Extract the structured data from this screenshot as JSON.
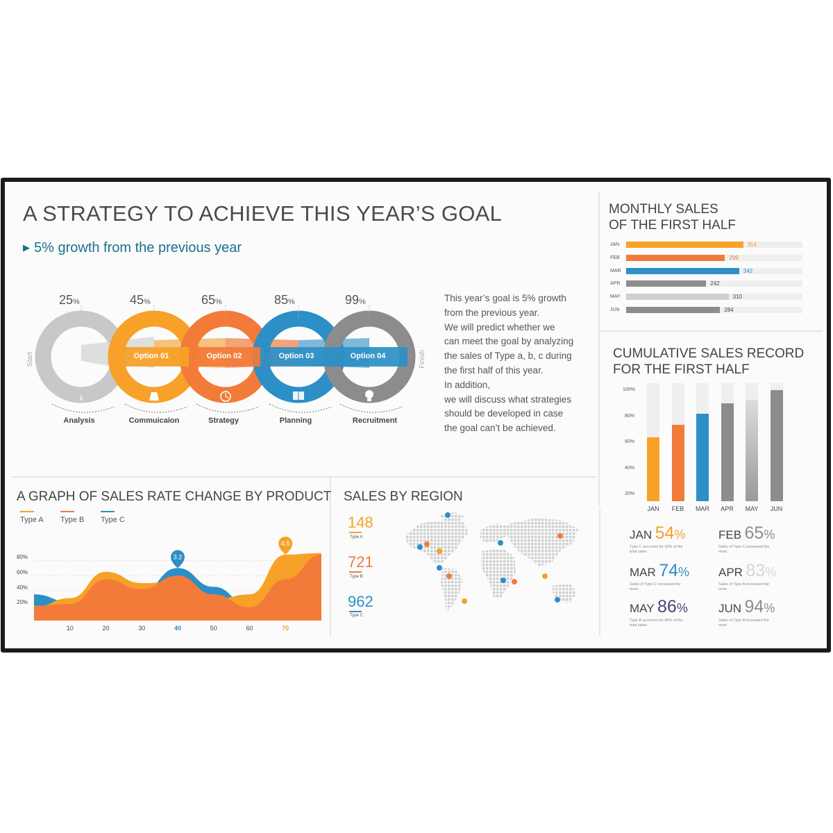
{
  "header": {
    "title": "A STRATEGY TO ACHIEVE THIS YEAR’S GOAL",
    "subtitle": "5% growth from the previous year"
  },
  "strategy": {
    "start_label": "Start",
    "finish_label": "Finish",
    "steps": [
      {
        "percent": "25",
        "unit": "%",
        "label": "Analysis",
        "option": "",
        "color": "#c8c8c8",
        "icon": "money-bag-icon"
      },
      {
        "percent": "45",
        "unit": "%",
        "label": "Commuicaion",
        "option": "Option 01",
        "color": "#f7a128",
        "icon": "flask-icon"
      },
      {
        "percent": "65",
        "unit": "%",
        "label": "Strategy",
        "option": "Option 02",
        "color": "#f27b3a",
        "icon": "clock-icon"
      },
      {
        "percent": "85",
        "unit": "%",
        "label": "Planning",
        "option": "Option 03",
        "color": "#2c8fc6",
        "icon": "book-icon"
      },
      {
        "percent": "99",
        "unit": "%",
        "label": "Recruitment",
        "option": "Option 04",
        "color": "#8c8c8c",
        "icon": "lightbulb-icon"
      }
    ],
    "description_lines": [
      "This year’s goal is 5% growth",
      "from the previous year.",
      "We will predict whether we",
      "can meet the goal by analyzing",
      "the sales of Type a, b, c during",
      "the first half of this year.",
      "In addition,",
      "we will discuss what strategies",
      "should be developed in case",
      "the goal can’t be achieved."
    ]
  },
  "monthly_sales": {
    "title_line1": "MONTHLY SALES",
    "title_line2": "OF THE FIRST HALF"
  },
  "cumulative": {
    "title_line1": "CUMULATIVE SALES RECORD",
    "title_line2": "FOR THE FIRST HALF",
    "ticks": [
      "100%",
      "80%",
      "60%",
      "40%",
      "20%"
    ],
    "percent_blocks": [
      {
        "month": "JAN",
        "value": "54",
        "unit": "%",
        "color": "#f7a128",
        "note": "Type C accounts for 50% of the total sales"
      },
      {
        "month": "FEB",
        "value": "65",
        "unit": "%",
        "color": "#8c8c8c",
        "note": "Sales of Type C increased the most"
      },
      {
        "month": "MAR",
        "value": "74",
        "unit": "%",
        "color": "#2c8fc6",
        "note": "Sales of Type C increased the most"
      },
      {
        "month": "APR",
        "value": "83",
        "unit": "%",
        "color": "#d5d5d5",
        "note": "Sales of Type B increased the most"
      },
      {
        "month": "MAY",
        "value": "86",
        "unit": "%",
        "color": "#4a4580",
        "note": "Type B accounts for 40% of the total sales"
      },
      {
        "month": "JUN",
        "value": "94",
        "unit": "%",
        "color": "#8c8c8c",
        "note": "Sales of Type B increased the most"
      }
    ]
  },
  "rate_graph": {
    "title": "A GRAPH OF SALES RATE CHANGE BY PRODUCT",
    "legend": [
      {
        "name": "Type A",
        "color": "#f7a128"
      },
      {
        "name": "Type B",
        "color": "#f27b3a"
      },
      {
        "name": "Type C",
        "color": "#2c8fc6"
      }
    ],
    "y_ticks": [
      "80%",
      "60%",
      "40%",
      "20%"
    ],
    "markers": [
      {
        "value": "3.2",
        "color": "#2c8fc6"
      },
      {
        "value": "4.5",
        "color": "#f7a128"
      }
    ]
  },
  "region": {
    "title": "SALES BY REGION",
    "items": [
      {
        "value": "148",
        "type": "Type A",
        "color": "#f7a128"
      },
      {
        "value": "721",
        "type": "Type B",
        "color": "#f27b3a"
      },
      {
        "value": "962",
        "type": "Type C",
        "color": "#2c8fc6"
      }
    ]
  },
  "chart_data": [
    {
      "type": "bar",
      "orientation": "horizontal",
      "title": "MONTHLY SALES OF THE FIRST HALF",
      "categories": [
        "JAN",
        "FEB",
        "MAR",
        "APR",
        "MAY",
        "JUN"
      ],
      "values": [
        354,
        299,
        342,
        242,
        310,
        284
      ],
      "colors": [
        "#f7a128",
        "#f27b3a",
        "#2c8fc6",
        "#8c8c8c",
        "#cfcfcf",
        "#8c8c8c"
      ],
      "xlim": [
        0,
        400
      ]
    },
    {
      "type": "bar",
      "title": "CUMULATIVE SALES RECORD FOR THE FIRST HALF",
      "categories": [
        "JAN",
        "FEB",
        "MAR",
        "APR",
        "MAY",
        "JUN"
      ],
      "values": [
        54,
        65,
        74,
        83,
        86,
        94
      ],
      "colors": [
        "#f7a128",
        "#f27b3a",
        "#2c8fc6",
        "#8c8c8c",
        "#bdbdbd",
        "#8c8c8c"
      ],
      "ylim": [
        0,
        100
      ]
    },
    {
      "type": "area",
      "title": "A GRAPH OF SALES RATE CHANGE BY PRODUCT",
      "x": [
        0,
        10,
        20,
        30,
        40,
        50,
        60,
        70,
        80
      ],
      "x_tick_labels": [
        "10",
        "20",
        "30",
        "40",
        "50",
        "60",
        "70"
      ],
      "highlight_ticks": {
        "40": "#2c8fc6",
        "70": "#f7a128"
      },
      "ylim": [
        0,
        100
      ],
      "series": [
        {
          "name": "Type C",
          "color": "#2c8fc6",
          "values": [
            35,
            25,
            45,
            40,
            70,
            45,
            20,
            50,
            85
          ]
        },
        {
          "name": "Type A",
          "color": "#f7a128",
          "values": [
            18,
            30,
            65,
            50,
            52,
            28,
            35,
            88,
            90
          ]
        },
        {
          "name": "Type B",
          "color": "#f27b3a",
          "values": [
            20,
            22,
            55,
            42,
            60,
            35,
            18,
            55,
            88
          ]
        }
      ]
    }
  ]
}
